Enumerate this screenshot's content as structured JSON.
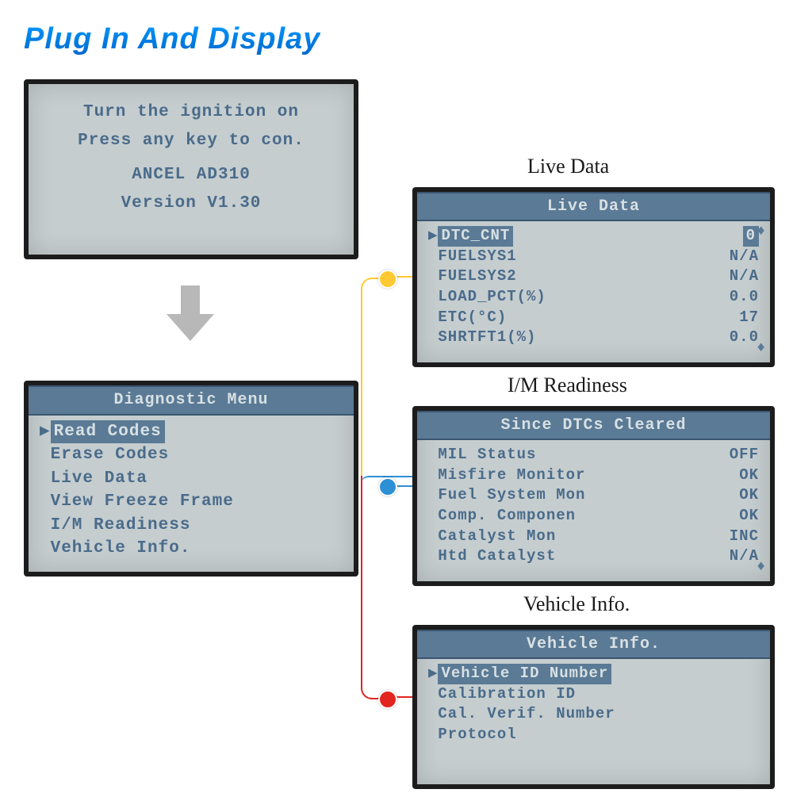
{
  "title": "Plug In And Display",
  "labels": {
    "live": "Live Data",
    "im": "I/M Readiness",
    "vi": "Vehicle Info."
  },
  "boot": {
    "line1": "Turn the ignition on",
    "line2": "Press any key to con.",
    "line3": "ANCEL AD310",
    "line4": "Version V1.30"
  },
  "menu": {
    "header": "Diagnostic Menu",
    "items": [
      {
        "label": "Read Codes",
        "selected": true
      },
      {
        "label": "Erase Codes",
        "selected": false
      },
      {
        "label": "Live Data",
        "selected": false
      },
      {
        "label": "View Freeze Frame",
        "selected": false
      },
      {
        "label": "I/M Readiness",
        "selected": false
      },
      {
        "label": "Vehicle Info.",
        "selected": false
      }
    ]
  },
  "live_data": {
    "header": "Live Data",
    "rows": [
      {
        "name": "DTC_CNT",
        "value": "0",
        "selected": true
      },
      {
        "name": "FUELSYS1",
        "value": "N/A",
        "selected": false
      },
      {
        "name": "FUELSYS2",
        "value": "N/A",
        "selected": false
      },
      {
        "name": "LOAD_PCT(%)",
        "value": "0.0",
        "selected": false
      },
      {
        "name": "ETC(°C)",
        "value": "17",
        "selected": false
      },
      {
        "name": "SHRTFT1(%)",
        "value": "0.0",
        "selected": false
      }
    ]
  },
  "im_readiness": {
    "header": "Since DTCs Cleared",
    "rows": [
      {
        "name": "MIL Status",
        "value": "OFF"
      },
      {
        "name": "Misfire Monitor",
        "value": "OK"
      },
      {
        "name": "Fuel System Mon",
        "value": "OK"
      },
      {
        "name": "Comp. Componen",
        "value": "OK"
      },
      {
        "name": "Catalyst Mon",
        "value": "INC"
      },
      {
        "name": "Htd Catalyst",
        "value": "N/A"
      }
    ]
  },
  "vehicle_info": {
    "header": "Vehicle Info.",
    "items": [
      {
        "label": "Vehicle ID Number",
        "selected": true
      },
      {
        "label": "Calibration ID",
        "selected": false
      },
      {
        "label": "Cal. Verif. Number",
        "selected": false
      },
      {
        "label": "Protocol",
        "selected": false
      }
    ]
  },
  "style": {
    "dot_colors": {
      "live": "#ffc933",
      "im": "#2d8fd6",
      "vi": "#e3251f"
    },
    "connector_colors": {
      "live": "#ffc933",
      "im": "#2d8fd6",
      "vi": "#e3251f"
    }
  }
}
